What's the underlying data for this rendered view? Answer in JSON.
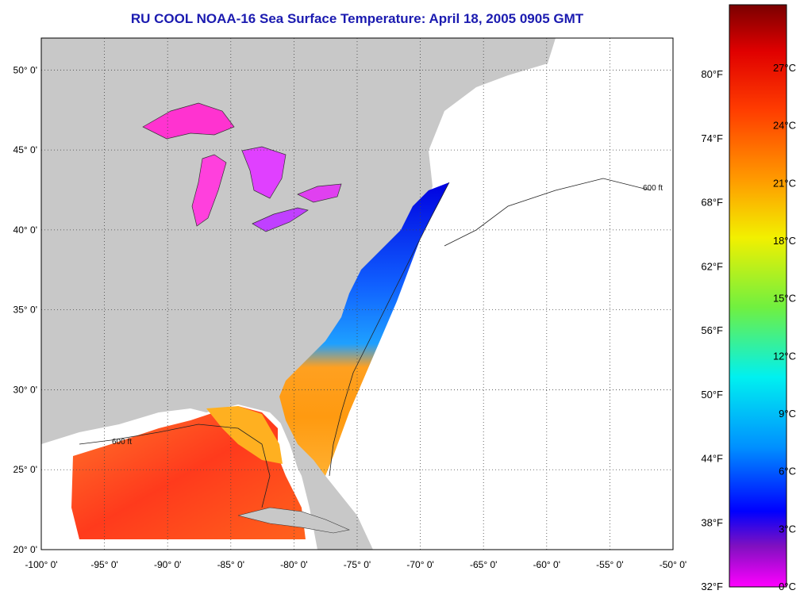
{
  "title": "RU COOL  NOAA-16  Sea Surface Temperature:  April 18, 2005 0905 GMT",
  "map": {
    "lon_range": [
      -100,
      -50
    ],
    "lat_range": [
      20,
      52
    ],
    "lon_labels": [
      "-100° 0'",
      "-95° 0'",
      "-90° 0'",
      "-85° 0'",
      "-80° 0'",
      "-75° 0'",
      "-70° 0'",
      "-65° 0'",
      "-60° 0'",
      "-55° 0'",
      "-50° 0'"
    ],
    "lat_labels": [
      "20° 0'",
      "25° 0'",
      "30° 0'",
      "35° 0'",
      "40° 0'",
      "45° 0'",
      "50° 0'"
    ],
    "contour_label": "600 ft",
    "colors": {
      "land": "#c8c8c8",
      "ocean_nodata": "#ffffff",
      "grid": "#444444"
    }
  },
  "colorbar": {
    "fahrenheit_labels": [
      "80°F",
      "74°F",
      "68°F",
      "62°F",
      "56°F",
      "50°F",
      "44°F",
      "38°F",
      "32°F"
    ],
    "celsius_labels": [
      "27°C",
      "24°C",
      "21°C",
      "18°C",
      "15°C",
      "12°C",
      "9°C",
      "6°C",
      "3°C",
      "0°C"
    ],
    "colors": [
      "#800000",
      "#ff0000",
      "#ff8000",
      "#ffff00",
      "#80ff40",
      "#00ffff",
      "#0080ff",
      "#0000ff",
      "#8000c0",
      "#ff00ff"
    ]
  }
}
